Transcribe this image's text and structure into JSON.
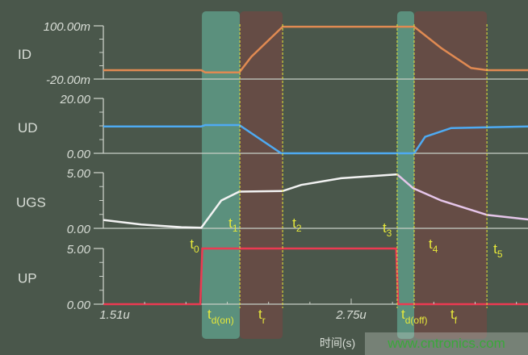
{
  "chart_data": {
    "type": "line",
    "xlabel": "时间(s)",
    "x_tick_labels": [
      "1.51u",
      "2.75u"
    ],
    "xlim": [
      1.51,
      3.635
    ],
    "grid": false,
    "panels": [
      {
        "name": "ID",
        "ylim": [
          -0.02,
          0.1
        ],
        "tick_labels": [
          "100.00m",
          "-20.00m"
        ],
        "color": "#e08a52",
        "x": [
          1.51,
          2.0,
          2.02,
          2.19,
          2.25,
          2.407,
          3.065,
          3.2,
          3.35,
          3.43,
          3.635
        ],
        "y": [
          0.0,
          0.0,
          -0.005,
          -0.005,
          0.03,
          0.098,
          0.098,
          0.05,
          0.005,
          0.0,
          0.0
        ]
      },
      {
        "name": "UD",
        "ylim": [
          0,
          20
        ],
        "tick_labels": [
          "20.00",
          "0.00"
        ],
        "color": "#4eaaf2",
        "x": [
          1.51,
          2.0,
          2.02,
          2.19,
          2.4,
          3.065,
          3.12,
          3.25,
          3.635
        ],
        "y": [
          9.8,
          9.8,
          10.3,
          10.3,
          0,
          0,
          6,
          9.2,
          9.8
        ]
      },
      {
        "name": "UGS",
        "ylim": [
          0,
          5
        ],
        "tick_labels": [
          "5.00",
          "0.00"
        ],
        "color": "#f2f2f2",
        "color_after_t3": "#e6c6ea",
        "x": [
          1.51,
          1.7,
          1.9,
          2.0,
          2.1,
          2.19,
          2.407,
          2.5,
          2.7,
          2.98,
          3.06,
          3.2,
          3.43,
          3.635
        ],
        "y": [
          0.75,
          0.35,
          0.1,
          0.05,
          2.5,
          3.3,
          3.35,
          3.9,
          4.5,
          4.85,
          3.6,
          2.5,
          1.2,
          0.8
        ]
      },
      {
        "name": "UP",
        "ylim": [
          0,
          5
        ],
        "tick_labels": [
          "5.00",
          "0.00"
        ],
        "color": "#ec3a52",
        "x": [
          1.51,
          1.995,
          2.005,
          2.975,
          2.985,
          3.635
        ],
        "y": [
          0,
          0,
          5,
          5,
          0,
          0
        ]
      }
    ],
    "intervals": [
      {
        "label": "t",
        "sub": "d(on)",
        "from": 2.003,
        "to": 2.193,
        "color": "#5e9a86"
      },
      {
        "label": "t",
        "sub": "r",
        "from": 2.193,
        "to": 2.407,
        "color": "#6a4a44"
      },
      {
        "label": "t",
        "sub": "d(off)",
        "from": 2.98,
        "to": 3.065,
        "color": "#5e9a86"
      },
      {
        "label": "t",
        "sub": "f",
        "from": 3.065,
        "to": 3.429,
        "color": "#6a4a44"
      }
    ],
    "markers": [
      {
        "label": "t",
        "sub": "0",
        "x": 2.0
      },
      {
        "label": "t",
        "sub": "1",
        "x": 2.193
      },
      {
        "label": "t",
        "sub": "2",
        "x": 2.407
      },
      {
        "label": "t",
        "sub": "3",
        "x": 2.98
      },
      {
        "label": "t",
        "sub": "4",
        "x": 3.065
      },
      {
        "label": "t",
        "sub": "5",
        "x": 3.429
      }
    ],
    "marker_color": "#e6e83a"
  },
  "watermark": "www.cntronics.com"
}
